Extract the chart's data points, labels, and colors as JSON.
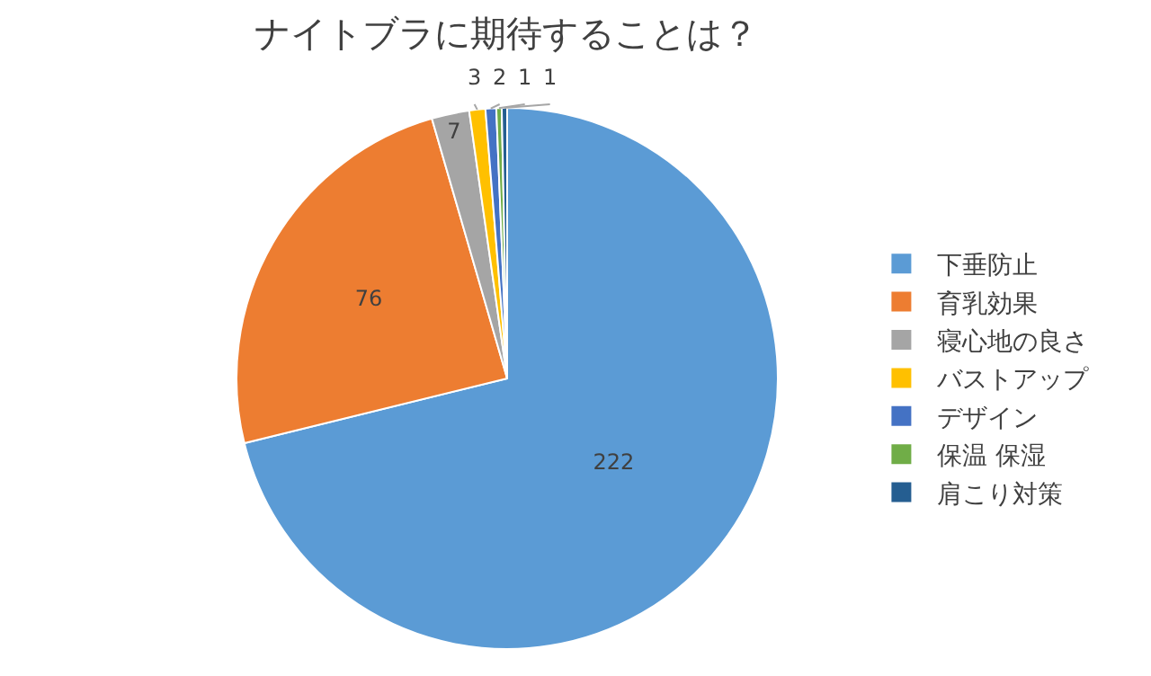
{
  "chart_data": {
    "type": "pie",
    "title": "ナイトブラに期待することは？",
    "categories": [
      "下垂防止",
      "育乳効果",
      "寝心地の良さ",
      "バストアップ",
      "デザイン",
      "保温 保湿",
      "肩こり対策"
    ],
    "values": [
      222,
      76,
      7,
      3,
      2,
      1,
      1
    ],
    "colors": [
      "#5b9bd5",
      "#ed7d31",
      "#a5a5a5",
      "#ffc000",
      "#4472c4",
      "#70ad47",
      "#255e91"
    ],
    "data_labels": true,
    "legend": "right"
  }
}
